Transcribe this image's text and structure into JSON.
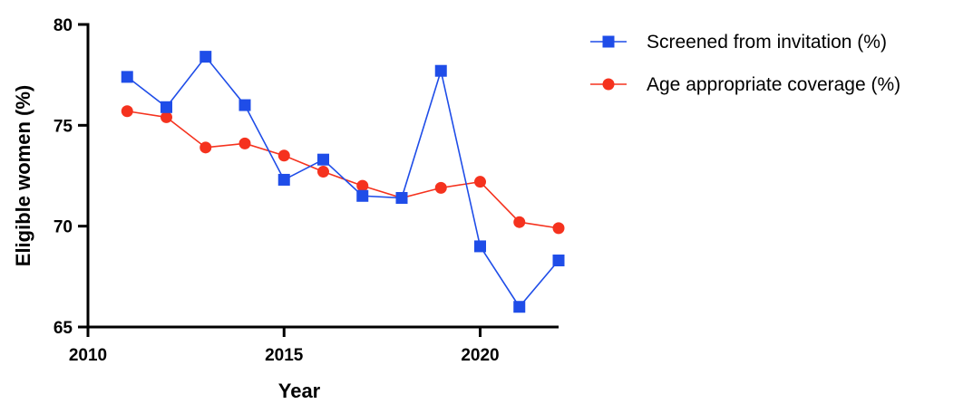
{
  "chart_data": {
    "type": "line",
    "xlabel": "Year",
    "ylabel": "Eligible women (%)",
    "xlim": [
      2010,
      2022
    ],
    "ylim": [
      65,
      80
    ],
    "xticks": [
      2010,
      2015,
      2020
    ],
    "yticks": [
      65,
      70,
      75,
      80
    ],
    "x_tick_labels": [
      "2010",
      "2015",
      "2020"
    ],
    "y_tick_labels": [
      "65",
      "70",
      "75",
      "80"
    ],
    "grid": false,
    "legend_position": "top-right outside",
    "x": [
      2011,
      2012,
      2013,
      2014,
      2015,
      2016,
      2017,
      2018,
      2019,
      2020,
      2021,
      2022
    ],
    "series": [
      {
        "name": "Screened from invitation (%)",
        "color": "#1f4de8",
        "marker": "square",
        "values": [
          77.4,
          75.9,
          78.4,
          76.0,
          72.3,
          73.3,
          71.5,
          71.4,
          77.7,
          69.0,
          66.0,
          68.3
        ]
      },
      {
        "name": "Age appropriate coverage (%)",
        "color": "#f5321e",
        "marker": "circle",
        "values": [
          75.7,
          75.4,
          73.9,
          74.1,
          73.5,
          72.7,
          72.0,
          71.4,
          71.9,
          72.2,
          70.2,
          69.9
        ]
      }
    ]
  }
}
